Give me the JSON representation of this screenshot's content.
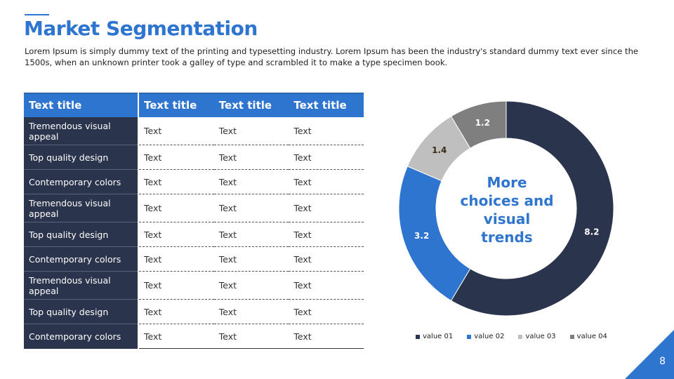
{
  "slide": {
    "title": "Market Segmentation",
    "subtitle": "Lorem Ipsum is simply dummy text of the printing and typesetting industry. Lorem Ipsum has been the industry's standard dummy text ever since the 1500s, when an unknown printer took a galley of type and scrambled it to make a type specimen book.",
    "page_number": "8",
    "accent_color": "#2e75d0",
    "dark_color": "#2b344d"
  },
  "table": {
    "headers": [
      "Text title",
      "Text title",
      "Text title",
      "Text title"
    ],
    "rows": [
      [
        "Tremendous visual appeal",
        "Text",
        "Text",
        "Text"
      ],
      [
        "Top quality design",
        "Text",
        "Text",
        "Text"
      ],
      [
        "Contemporary colors",
        "Text",
        "Text",
        "Text"
      ],
      [
        "Tremendous visual appeal",
        "Text",
        "Text",
        "Text"
      ],
      [
        "Top quality design",
        "Text",
        "Text",
        "Text"
      ],
      [
        "Contemporary colors",
        "Text",
        "Text",
        "Text"
      ],
      [
        "Tremendous visual appeal",
        "Text",
        "Text",
        "Text"
      ],
      [
        "Top quality design",
        "Text",
        "Text",
        "Text"
      ],
      [
        "Contemporary colors",
        "Text",
        "Text",
        "Text"
      ]
    ]
  },
  "chart_data": {
    "type": "pie",
    "donut": true,
    "center_text": "More choices and visual trends",
    "categories": [
      "value 01",
      "value 02",
      "value 03",
      "value 04"
    ],
    "values": [
      8.2,
      3.2,
      1.4,
      1.2
    ],
    "colors": [
      "#2b344d",
      "#2e75d0",
      "#bfbfbf",
      "#7f7f7f"
    ],
    "label_colors": [
      "#ffffff",
      "#ffffff",
      "#3a2a1a",
      "#ffffff"
    ],
    "legend_position": "bottom"
  }
}
